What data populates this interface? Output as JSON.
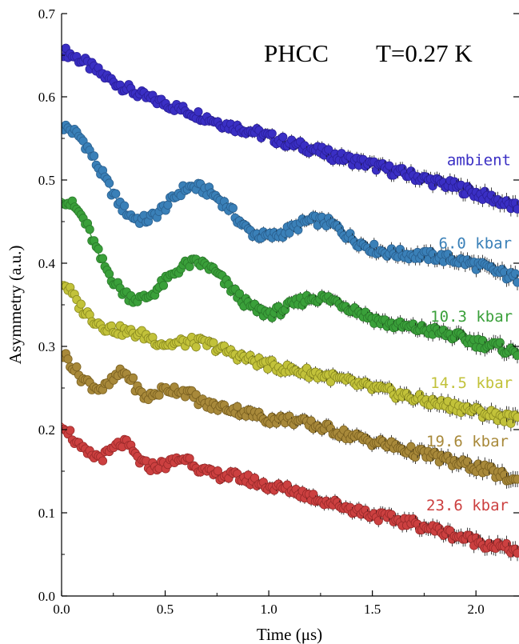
{
  "chart_data": {
    "type": "scatter",
    "title_left": "PHCC",
    "title_right": "T=0.27 K",
    "xlabel": "Time (μs)",
    "ylabel": "Asymmetry (a.u.)",
    "xlim": [
      0,
      2.2
    ],
    "ylim": [
      0,
      0.7
    ],
    "x_ticks": [
      "0.0",
      "0.5",
      "1.0",
      "1.5",
      "2.0"
    ],
    "x_tick_values": [
      0,
      0.5,
      1.0,
      1.5,
      2.0
    ],
    "y_ticks": [
      "0.0",
      "0.1",
      "0.2",
      "0.3",
      "0.4",
      "0.5",
      "0.6",
      "0.7"
    ],
    "y_tick_values": [
      0,
      0.1,
      0.2,
      0.3,
      0.4,
      0.5,
      0.6,
      0.7
    ],
    "grid": false,
    "series": [
      {
        "name": "ambient",
        "color": "#3a2fc4",
        "marker_edge": "#2a1f9a",
        "fit_color": "#3a2fc4",
        "x": [
          0.0,
          0.1,
          0.2,
          0.3,
          0.4,
          0.5,
          0.6,
          0.7,
          0.8,
          0.9,
          1.0,
          1.1,
          1.2,
          1.3,
          1.4,
          1.5,
          1.6,
          1.7,
          1.8,
          1.9,
          2.0,
          2.1,
          2.2
        ],
        "y": [
          0.655,
          0.643,
          0.626,
          0.612,
          0.6,
          0.592,
          0.583,
          0.575,
          0.566,
          0.56,
          0.552,
          0.544,
          0.538,
          0.53,
          0.524,
          0.518,
          0.511,
          0.505,
          0.498,
          0.492,
          0.484,
          0.476,
          0.466
        ]
      },
      {
        "name": "6.0 kbar",
        "color": "#3a80b8",
        "marker_edge": "#2a6090",
        "fit_color": "#3a80b8",
        "x": [
          0.0,
          0.1,
          0.2,
          0.3,
          0.4,
          0.5,
          0.6,
          0.7,
          0.8,
          0.9,
          1.0,
          1.1,
          1.2,
          1.3,
          1.4,
          1.5,
          1.6,
          1.7,
          1.8,
          1.9,
          2.0,
          2.1,
          2.2
        ],
        "y": [
          0.565,
          0.548,
          0.505,
          0.465,
          0.452,
          0.468,
          0.49,
          0.487,
          0.468,
          0.44,
          0.432,
          0.44,
          0.451,
          0.447,
          0.43,
          0.418,
          0.412,
          0.41,
          0.408,
          0.404,
          0.398,
          0.39,
          0.382
        ]
      },
      {
        "name": "10.3 kbar",
        "color": "#3aa03a",
        "marker_edge": "#2a7a2a",
        "fit_color": "#3aa03a",
        "x": [
          0.0,
          0.1,
          0.2,
          0.3,
          0.4,
          0.5,
          0.6,
          0.7,
          0.8,
          0.9,
          1.0,
          1.1,
          1.2,
          1.3,
          1.4,
          1.5,
          1.6,
          1.7,
          1.8,
          1.9,
          2.0,
          2.1,
          2.2
        ],
        "y": [
          0.478,
          0.455,
          0.4,
          0.365,
          0.358,
          0.378,
          0.398,
          0.397,
          0.374,
          0.35,
          0.34,
          0.348,
          0.358,
          0.356,
          0.346,
          0.334,
          0.326,
          0.322,
          0.318,
          0.312,
          0.305,
          0.3,
          0.292
        ]
      },
      {
        "name": "14.5 kbar",
        "color": "#c2c23a",
        "marker_edge": "#8a8a20",
        "fit_color": "#c2c23a",
        "x": [
          0.0,
          0.1,
          0.2,
          0.3,
          0.4,
          0.5,
          0.6,
          0.7,
          0.8,
          0.9,
          1.0,
          1.1,
          1.2,
          1.3,
          1.4,
          1.5,
          1.6,
          1.7,
          1.8,
          1.9,
          2.0,
          2.1,
          2.2
        ],
        "y": [
          0.378,
          0.345,
          0.325,
          0.318,
          0.313,
          0.303,
          0.305,
          0.303,
          0.294,
          0.285,
          0.278,
          0.272,
          0.268,
          0.263,
          0.256,
          0.25,
          0.244,
          0.238,
          0.232,
          0.228,
          0.222,
          0.217,
          0.212
        ]
      },
      {
        "name": "19.6 kbar",
        "color": "#a8893a",
        "marker_edge": "#7a6020",
        "fit_color": "#a8893a",
        "x": [
          0.0,
          0.1,
          0.2,
          0.3,
          0.4,
          0.5,
          0.6,
          0.7,
          0.8,
          0.9,
          1.0,
          1.1,
          1.2,
          1.3,
          1.4,
          1.5,
          1.6,
          1.7,
          1.8,
          1.9,
          2.0,
          2.1,
          2.2
        ],
        "y": [
          0.292,
          0.262,
          0.25,
          0.268,
          0.24,
          0.248,
          0.245,
          0.23,
          0.226,
          0.22,
          0.213,
          0.212,
          0.206,
          0.2,
          0.192,
          0.186,
          0.18,
          0.173,
          0.168,
          0.16,
          0.155,
          0.147,
          0.138
        ]
      },
      {
        "name": "23.6 kbar",
        "color": "#cc4040",
        "marker_edge": "#9a2a2a",
        "fit_color": "#cc4040",
        "x": [
          0.0,
          0.1,
          0.2,
          0.3,
          0.4,
          0.5,
          0.6,
          0.7,
          0.8,
          0.9,
          1.0,
          1.1,
          1.2,
          1.3,
          1.4,
          1.5,
          1.6,
          1.7,
          1.8,
          1.9,
          2.0,
          2.1,
          2.2
        ],
        "y": [
          0.208,
          0.175,
          0.168,
          0.183,
          0.158,
          0.158,
          0.165,
          0.148,
          0.145,
          0.14,
          0.132,
          0.128,
          0.12,
          0.112,
          0.105,
          0.098,
          0.092,
          0.087,
          0.08,
          0.073,
          0.066,
          0.06,
          0.055
        ]
      }
    ]
  }
}
